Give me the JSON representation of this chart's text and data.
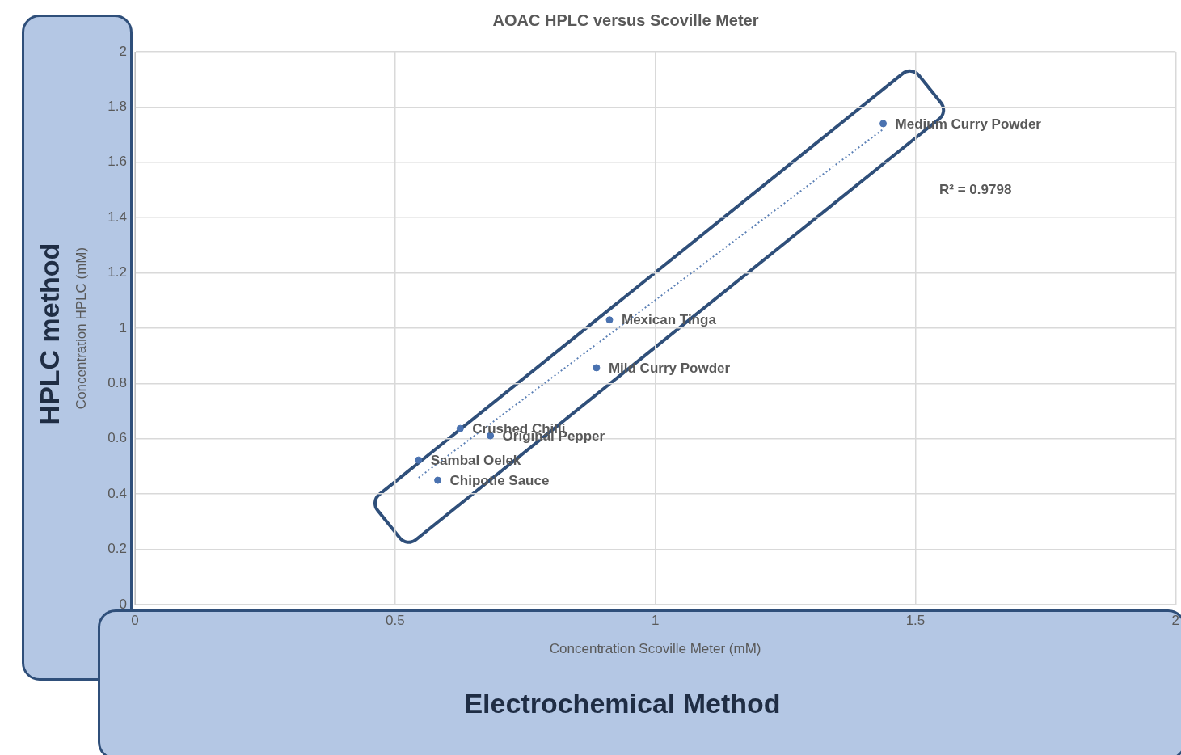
{
  "chart_data": {
    "type": "scatter",
    "title": "AOAC HPLC versus Scoville Meter",
    "xlabel": "Concentration Scoville Meter (mM)",
    "ylabel": "Concentration HPLC (mM)",
    "xlim": [
      0,
      2
    ],
    "ylim": [
      0,
      2
    ],
    "xticks": [
      0,
      0.5,
      1,
      1.5,
      2
    ],
    "yticks": [
      0,
      0.2,
      0.4,
      0.6,
      0.8,
      1,
      1.2,
      1.4,
      1.6,
      1.8,
      2
    ],
    "grid": true,
    "legend": false,
    "marker": "circle",
    "annotations": [
      "R² = 0.9798",
      "HPLC method",
      "Electrochemical Method"
    ],
    "series": [
      {
        "name": "Medium Curry Powder",
        "color": "#4a72b0",
        "x": [
          1.438
        ],
        "values": [
          1.74
        ]
      },
      {
        "name": "Mexican Tinga",
        "color": "#4a72b0",
        "x": [
          0.912
        ],
        "values": [
          1.03
        ]
      },
      {
        "name": "Mild Curry Powder",
        "color": "#4a72b0",
        "x": [
          0.887
        ],
        "values": [
          0.857
        ]
      },
      {
        "name": "Crushed Chilli",
        "color": "#4a72b0",
        "x": [
          0.625
        ],
        "values": [
          0.637
        ]
      },
      {
        "name": "Original Pepper",
        "color": "#4a72b0",
        "x": [
          0.683
        ],
        "values": [
          0.611
        ]
      },
      {
        "name": "Sambal Oelek",
        "color": "#4a72b0",
        "x": [
          0.545
        ],
        "values": [
          0.523
        ]
      },
      {
        "name": "Chipotle Sauce",
        "color": "#4a72b0",
        "x": [
          0.582
        ],
        "values": [
          0.45
        ]
      },
      {
        "type": "line",
        "line_style": "dotted",
        "marker": "none",
        "color": "#5a7fb5",
        "x": [
          0.545,
          1.438
        ],
        "values": [
          0.459,
          1.72
        ]
      }
    ]
  }
}
